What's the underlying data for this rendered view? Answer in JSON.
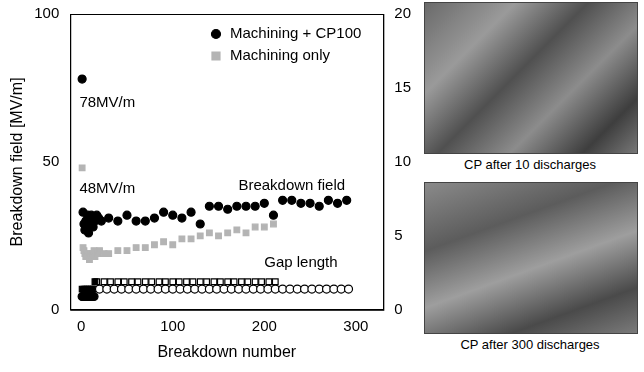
{
  "chart_data": {
    "type": "scatter",
    "x_label": "Breakdown number",
    "y_label": "Breakdown field [MV/m]",
    "xlim": [
      -12,
      330
    ],
    "xticks": [
      0,
      100,
      200,
      300
    ],
    "ylim": [
      0,
      100
    ],
    "yticks": [
      0,
      50,
      100
    ],
    "y2lim": [
      0,
      20
    ],
    "y2ticks": [
      0,
      5,
      10,
      15,
      20
    ],
    "grid": false,
    "legend": "upper right",
    "annotations": [
      "78MV/m",
      "48MV/m",
      "Breakdown field",
      "Gap length"
    ],
    "series": [
      {
        "name": "Machining + CP100",
        "color": "#000000",
        "marker": "circle",
        "x": [
          1,
          2,
          3,
          4,
          5,
          6,
          7,
          8,
          9,
          10,
          11,
          12,
          13,
          14,
          15,
          17,
          19,
          22,
          30,
          40,
          50,
          60,
          70,
          80,
          90,
          100,
          110,
          120,
          130,
          140,
          150,
          160,
          170,
          180,
          190,
          200,
          210,
          220,
          230,
          240,
          250,
          260,
          270,
          280,
          290
        ],
        "values": [
          78,
          33,
          29,
          27,
          30,
          28,
          32,
          26,
          31,
          29,
          32,
          30,
          28,
          31,
          30,
          32,
          31,
          30,
          31,
          30,
          32,
          30,
          30,
          31,
          33,
          32,
          31,
          33,
          29,
          35,
          35,
          34,
          35,
          35,
          35,
          36,
          32,
          37,
          37,
          36,
          36,
          35,
          37,
          36,
          37
        ]
      },
      {
        "name": "Machining only",
        "color": "#b4b4b4",
        "marker": "square",
        "x": [
          1,
          2,
          3,
          4,
          5,
          6,
          7,
          8,
          9,
          10,
          11,
          12,
          13,
          14,
          15,
          16,
          18,
          20,
          25,
          30,
          40,
          50,
          60,
          70,
          80,
          90,
          100,
          110,
          120,
          130,
          140,
          150,
          160,
          170,
          180,
          190,
          200,
          210
        ],
        "values": [
          48,
          21,
          20,
          19,
          18,
          19,
          18,
          18,
          17,
          18,
          19,
          18,
          19,
          20,
          18,
          19,
          19,
          20,
          19,
          19,
          20,
          20,
          21,
          21,
          22,
          23,
          22,
          24,
          24,
          25,
          26,
          25,
          26,
          27,
          26,
          28,
          28,
          29
        ]
      },
      {
        "name": "Machining + CP100",
        "color": "#000000",
        "marker": "circle",
        "axis": "y2",
        "x": [
          1,
          2,
          3,
          4,
          5,
          6,
          7,
          8,
          9,
          10,
          12,
          14
        ],
        "values": [
          0.9,
          0.9,
          0.9,
          0.9,
          0.9,
          0.9,
          0.9,
          0.9,
          0.9,
          0.9,
          0.9,
          0.9
        ]
      },
      {
        "name": "Machining + CP100",
        "color": "#000000",
        "marker": "circle_open",
        "axis": "y2",
        "x": [
          20,
          28,
          36,
          44,
          52,
          60,
          68,
          76,
          84,
          92,
          100,
          108,
          116,
          124,
          132,
          140,
          148,
          156,
          164,
          172,
          180,
          188,
          196,
          204,
          212,
          220,
          228,
          236,
          244,
          252,
          260,
          268,
          276,
          284,
          292
        ],
        "values": [
          1.4,
          1.4,
          1.4,
          1.4,
          1.4,
          1.4,
          1.4,
          1.4,
          1.4,
          1.4,
          1.4,
          1.4,
          1.4,
          1.4,
          1.4,
          1.4,
          1.4,
          1.4,
          1.4,
          1.4,
          1.4,
          1.4,
          1.4,
          1.4,
          1.4,
          1.4,
          1.4,
          1.4,
          1.4,
          1.4,
          1.4,
          1.4,
          1.4,
          1.4,
          1.4
        ]
      },
      {
        "name": "Machining only",
        "color": "#000000",
        "marker": "square",
        "axis": "y2",
        "x": [
          1,
          3,
          5,
          7,
          9,
          11,
          13,
          15
        ],
        "values": [
          1.4,
          1.4,
          1.4,
          1.4,
          1.4,
          1.4,
          1.4,
          1.9
        ]
      },
      {
        "name": "Machining only",
        "color": "#000000",
        "marker": "square_open",
        "axis": "y2",
        "x": [
          17,
          25,
          32,
          40,
          47,
          55,
          62,
          70,
          77,
          85,
          92,
          100,
          107,
          115,
          122,
          130,
          137,
          145,
          152,
          160,
          167,
          175,
          182,
          190,
          197,
          205,
          212
        ],
        "values": [
          1.9,
          1.9,
          1.9,
          1.9,
          1.9,
          1.9,
          1.9,
          1.9,
          1.9,
          1.9,
          1.9,
          1.9,
          1.9,
          1.9,
          1.9,
          1.9,
          1.9,
          1.9,
          1.9,
          1.9,
          1.9,
          1.9,
          1.9,
          1.9,
          1.9,
          1.9,
          1.9
        ]
      }
    ]
  },
  "images": [
    {
      "caption": "CP after 10 discharges"
    },
    {
      "caption": "CP after 300 discharges"
    }
  ]
}
